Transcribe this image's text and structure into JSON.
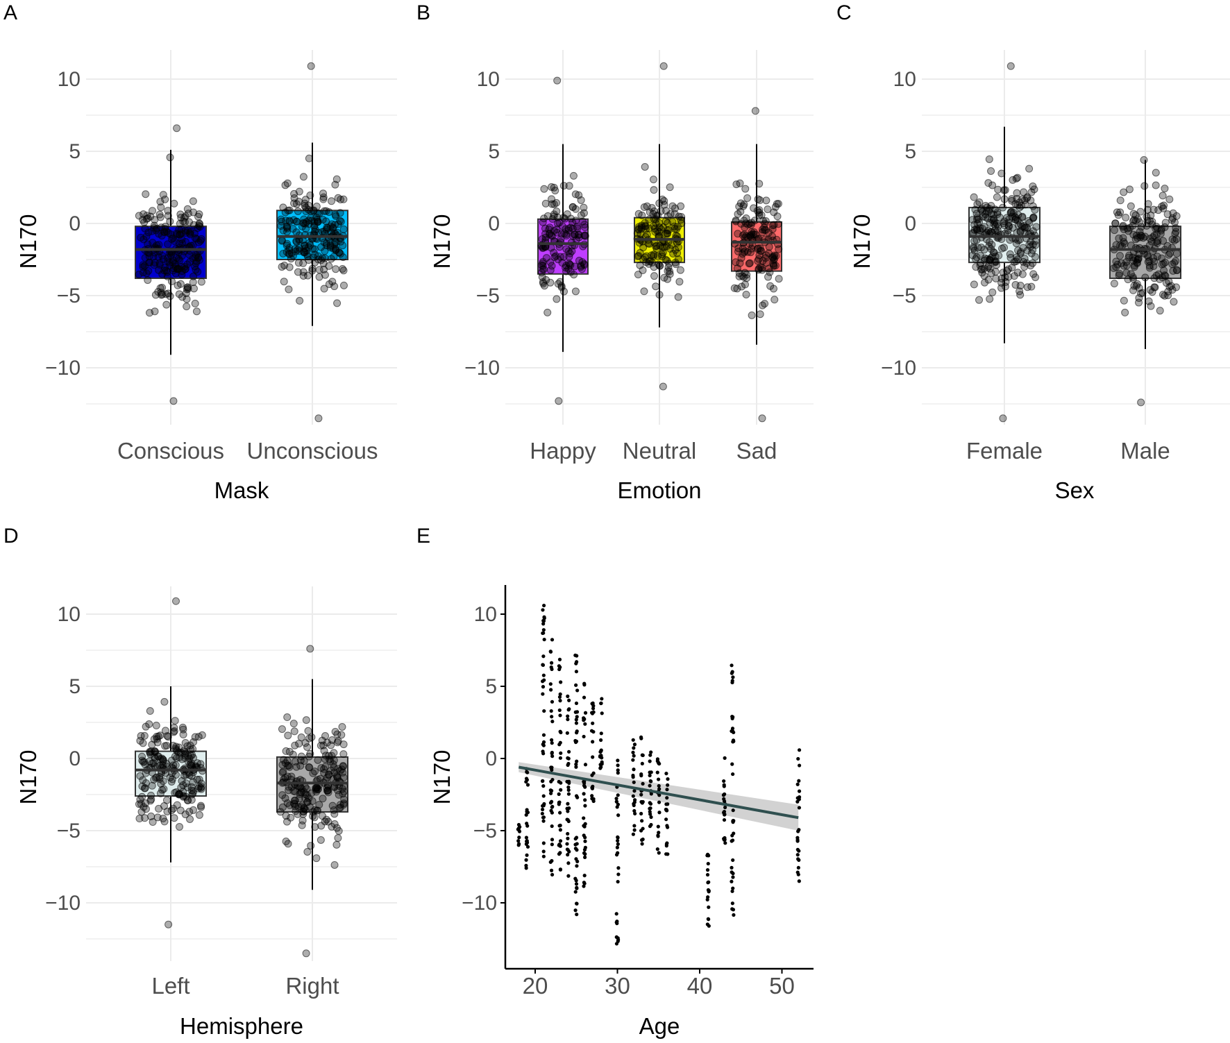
{
  "figure": {
    "panels": [
      "A",
      "B",
      "C",
      "D",
      "E"
    ]
  },
  "colors": {
    "grid": "#ebebeb",
    "point": "#000000",
    "box_outline": "#333333",
    "fit_line": "#2f4f4f",
    "fit_ribbon": "#bfbfbf"
  },
  "chart_data": [
    {
      "panel": "A",
      "type": "box",
      "xlabel": "Mask",
      "ylabel": "N170",
      "ylim": [
        -14,
        12
      ],
      "yticks": [
        -10,
        -5,
        0,
        5,
        10
      ],
      "categories": [
        "Conscious",
        "Unconscious"
      ],
      "boxes": [
        {
          "q1": -3.8,
          "median": -1.8,
          "q3": -0.2,
          "whisker_low": -9.1,
          "whisker_high": 5.1,
          "fill": "#0000cd",
          "n_points": 220,
          "min": -12.3,
          "max": 6.6
        },
        {
          "q1": -2.5,
          "median": -0.9,
          "q3": 0.9,
          "whisker_low": -7.1,
          "whisker_high": 5.6,
          "fill": "#00bfff",
          "n_points": 220,
          "min": -13.5,
          "max": 10.9
        }
      ]
    },
    {
      "panel": "B",
      "type": "box",
      "xlabel": "Emotion",
      "ylabel": "N170",
      "ylim": [
        -14,
        12
      ],
      "yticks": [
        -10,
        -5,
        0,
        5,
        10
      ],
      "categories": [
        "Happy",
        "Neutral",
        "Sad"
      ],
      "boxes": [
        {
          "q1": -3.5,
          "median": -1.4,
          "q3": 0.3,
          "whisker_low": -8.9,
          "whisker_high": 5.5,
          "fill": "#bf3eff",
          "n_points": 150,
          "min": -12.3,
          "max": 9.9
        },
        {
          "q1": -2.7,
          "median": -1.1,
          "q3": 0.4,
          "whisker_low": -7.2,
          "whisker_high": 5.5,
          "fill": "#eeee00",
          "n_points": 150,
          "min": -11.3,
          "max": 10.9
        },
        {
          "q1": -3.3,
          "median": -1.3,
          "q3": 0.1,
          "whisker_low": -8.4,
          "whisker_high": 5.5,
          "fill": "#ff6a6a",
          "n_points": 150,
          "min": -13.5,
          "max": 7.8
        }
      ]
    },
    {
      "panel": "C",
      "type": "box",
      "xlabel": "Sex",
      "ylabel": "N170",
      "ylim": [
        -14,
        12
      ],
      "yticks": [
        -10,
        -5,
        0,
        5,
        10
      ],
      "categories": [
        "Female",
        "Male"
      ],
      "boxes": [
        {
          "q1": -2.7,
          "median": -0.9,
          "q3": 1.1,
          "whisker_low": -8.3,
          "whisker_high": 6.7,
          "fill": "#e0eeee",
          "n_points": 260,
          "min": -13.5,
          "max": 10.9
        },
        {
          "q1": -3.8,
          "median": -1.8,
          "q3": -0.2,
          "whisker_low": -8.7,
          "whisker_high": 4.4,
          "fill": "#a9a9a9",
          "n_points": 200,
          "min": -12.4,
          "max": 4.4
        }
      ]
    },
    {
      "panel": "D",
      "type": "box",
      "xlabel": "Hemisphere",
      "ylabel": "N170",
      "ylim": [
        -14,
        12
      ],
      "yticks": [
        -10,
        -5,
        0,
        5,
        10
      ],
      "categories": [
        "Left",
        "Right"
      ],
      "boxes": [
        {
          "q1": -2.6,
          "median": -0.8,
          "q3": 0.5,
          "whisker_low": -7.2,
          "whisker_high": 5.0,
          "fill": "#e0eeee",
          "n_points": 220,
          "min": -11.5,
          "max": 10.9
        },
        {
          "q1": -3.7,
          "median": -1.7,
          "q3": 0.1,
          "whisker_low": -9.1,
          "whisker_high": 5.5,
          "fill": "#a9a9a9",
          "n_points": 220,
          "min": -13.5,
          "max": 7.6
        }
      ]
    },
    {
      "panel": "E",
      "type": "scatter",
      "xlabel": "Age",
      "ylabel": "N170",
      "xlim": [
        16,
        53.5
      ],
      "ylim": [
        -14,
        12
      ],
      "xticks": [
        20,
        30,
        40,
        50
      ],
      "yticks": [
        -10,
        -5,
        0,
        5,
        10
      ],
      "ages": [
        18,
        19,
        21,
        22,
        23,
        24,
        25,
        26,
        27,
        28,
        30,
        32,
        33,
        34,
        35,
        36,
        41,
        43,
        44,
        52
      ],
      "age_spread": [
        [
          -6,
          -4.5
        ],
        [
          -8.2,
          0.2
        ],
        [
          -7.5,
          10.9
        ],
        [
          -8.5,
          8.5
        ],
        [
          -7.8,
          7.5
        ],
        [
          -9,
          5.5
        ],
        [
          -11.5,
          7.5
        ],
        [
          -9,
          6
        ],
        [
          -3.5,
          4.5
        ],
        [
          -2,
          4.2
        ],
        [
          -13.5,
          0
        ],
        [
          -5.5,
          1.5
        ],
        [
          -6,
          1.7
        ],
        [
          -6.5,
          0.5
        ],
        [
          -7,
          0.5
        ],
        [
          -7,
          -1
        ],
        [
          -12.3,
          -6.5
        ],
        [
          -6,
          0.5
        ],
        [
          -11,
          6.5
        ],
        [
          -8.5,
          1
        ]
      ],
      "fit": {
        "x": [
          18,
          52
        ],
        "y": [
          -0.6,
          -4.1
        ],
        "ci_at_start": 0.35,
        "ci_at_end": 0.9
      }
    }
  ]
}
